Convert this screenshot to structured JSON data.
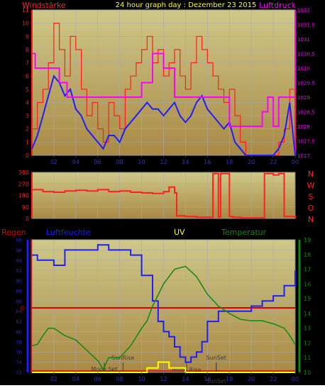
{
  "header": {
    "left_label": "Windstärke",
    "title": "24 hour graph day : Dezember 23 2015",
    "right_label": "Luftdruck"
  },
  "colors": {
    "background": "#000000",
    "plot_top": "#cfc889",
    "plot_bottom": "#a88944",
    "grid": "#a9a9a9",
    "wind_gust": "#ff1e1e",
    "wind_avg": "#1e1eff",
    "pressure": "#ff00ff",
    "direction": "#ff2020",
    "humidity": "#1e1eff",
    "temperature": "#118811",
    "rain": "#e00000",
    "uv": "#ffff00",
    "moon_marker": "#404040",
    "title_yellow": "#ffff00"
  },
  "chart_data": [
    {
      "type": "line",
      "title": "24 hour graph day : Dezember 23 2015",
      "xlabel": "",
      "x_ticks": [
        "02",
        "04",
        "06",
        "08",
        "10",
        "12",
        "14",
        "16",
        "18",
        "20",
        "22",
        "00"
      ],
      "ylabel_left": "Windstärke",
      "ylabel_right": "Luftdruck",
      "ylim_left": [
        0,
        11
      ],
      "y_ticks_left": [
        "0",
        "1",
        "2",
        "3",
        "4",
        "5",
        "6",
        "7",
        "8",
        "9",
        "10",
        "11"
      ],
      "ylim_right": [
        1027,
        1032
      ],
      "y_ticks_right": [
        "1027",
        "1027,5",
        "1028",
        "1028,5",
        "1029",
        "1029,5",
        "1030",
        "1030,5",
        "1031",
        "1031,5",
        "1032"
      ],
      "grid": true,
      "series": [
        {
          "axis": "left",
          "role": "gust",
          "x": [
            0,
            0.5,
            1,
            1.5,
            2,
            2.5,
            3,
            3.5,
            4,
            4.5,
            5,
            5.5,
            6,
            6.5,
            7,
            7.5,
            8,
            8.5,
            9,
            9.5,
            10,
            10.5,
            11,
            11.5,
            12,
            12.5,
            13,
            13.5,
            14,
            14.5,
            15,
            15.5,
            16,
            16.5,
            17,
            17.5,
            18,
            18.5,
            19,
            19.5,
            20,
            20.5,
            21,
            21.5,
            22,
            22.5,
            23,
            23.5,
            24
          ],
          "values": [
            2,
            4,
            5,
            7,
            10,
            8,
            6,
            9,
            8,
            5,
            3,
            4,
            2,
            1,
            4,
            3,
            2,
            5,
            6,
            7,
            8,
            9,
            7,
            8,
            6,
            7,
            8,
            6,
            5,
            7,
            9,
            8,
            7,
            6,
            5,
            4,
            5,
            3,
            1,
            0,
            0,
            0,
            0,
            0,
            0,
            1,
            2,
            5,
            0
          ]
        },
        {
          "axis": "left",
          "role": "average",
          "x": [
            0,
            0.5,
            1,
            1.5,
            2,
            2.5,
            3,
            3.5,
            4,
            4.5,
            5,
            5.5,
            6,
            6.5,
            7,
            7.5,
            8,
            8.5,
            9,
            9.5,
            10,
            10.5,
            11,
            11.5,
            12,
            12.5,
            13,
            13.5,
            14,
            14.5,
            15,
            15.5,
            16,
            16.5,
            17,
            17.5,
            18,
            18.5,
            19,
            19.5,
            20,
            20.5,
            21,
            21.5,
            22,
            22.5,
            23,
            23.5,
            24
          ],
          "values": [
            0.5,
            1.5,
            3,
            4.5,
            6,
            5.5,
            4.5,
            5,
            3.5,
            3,
            2,
            1.5,
            1,
            0.5,
            1.5,
            1.5,
            1,
            2,
            2.5,
            3,
            3.5,
            4,
            3.5,
            3.5,
            3,
            3.5,
            4,
            3,
            2.5,
            3,
            4,
            4.5,
            3.5,
            3,
            2.5,
            2,
            2.5,
            1,
            0.5,
            0,
            0,
            0,
            0,
            0,
            0,
            0.5,
            1.5,
            4,
            0
          ]
        },
        {
          "axis": "right",
          "role": "pressure",
          "x": [
            0,
            0.3,
            1,
            2,
            2.5,
            3,
            3.2,
            4,
            5,
            6,
            7,
            8,
            8.5,
            10,
            11,
            12,
            13,
            13.5,
            14,
            15,
            16,
            17,
            18,
            18.2,
            19,
            20,
            21,
            21.5,
            22,
            22.5,
            23,
            23.5,
            24
          ],
          "values": [
            1030.5,
            1030,
            1030,
            1030,
            1029.5,
            1029.5,
            1029,
            1029,
            1029,
            1029,
            1029,
            1029,
            1029,
            1029.5,
            1030.5,
            1030,
            1029,
            1029,
            1029,
            1029,
            1029,
            1029,
            1028,
            1028,
            1028,
            1028,
            1028.5,
            1029,
            1028,
            1029,
            1029,
            1029,
            1029
          ]
        }
      ]
    },
    {
      "type": "line",
      "title": "",
      "xlabel": "",
      "ylabel": "",
      "ylim": [
        0,
        360
      ],
      "y_ticks": [
        "0",
        "90",
        "180",
        "270",
        "360"
      ],
      "compass_labels": [
        "N",
        "W",
        "S",
        "O",
        "N"
      ],
      "grid": true,
      "series": [
        {
          "role": "wind_direction",
          "x": [
            0,
            1,
            2,
            3,
            4,
            5,
            6,
            7,
            8,
            9,
            10,
            11,
            12,
            12.5,
            13,
            13.2,
            14,
            15,
            16,
            16.5,
            16.7,
            17,
            17.2,
            17.5,
            18,
            18.3,
            19,
            20,
            21,
            21.2,
            22,
            22.5,
            23,
            24
          ],
          "values": [
            225,
            210,
            205,
            215,
            220,
            215,
            225,
            210,
            215,
            205,
            200,
            195,
            210,
            245,
            200,
            20,
            15,
            10,
            10,
            350,
            350,
            10,
            350,
            350,
            15,
            10,
            5,
            5,
            5,
            350,
            340,
            350,
            15,
            5
          ]
        }
      ]
    },
    {
      "type": "line",
      "title": "",
      "xlabel": "",
      "x_ticks": [
        "02",
        "04",
        "06",
        "08",
        "10",
        "12",
        "14",
        "16",
        "18",
        "20",
        "22",
        "00"
      ],
      "ylabel_left": "Luftfeuchte",
      "ylim_left": [
        72,
        98
      ],
      "y_ticks_left": [
        "72",
        "74",
        "76",
        "78",
        "80",
        "82",
        "84",
        "86",
        "88",
        "90",
        "92",
        "94",
        "96",
        "98"
      ],
      "ylabel_right": "Temperatur",
      "ylim_right": [
        10,
        19
      ],
      "y_ticks_right": [
        "10",
        "11",
        "12",
        "13",
        "14",
        "15",
        "16",
        "17",
        "18",
        "19"
      ],
      "extra_labels": {
        "rain": "Regen",
        "uv": "UV",
        "rain_tick": "0"
      },
      "annotations": [
        "Moon Set",
        "SunRise",
        "SunSet",
        "Moon Rise",
        "SunSet"
      ],
      "grid": true,
      "series": [
        {
          "axis": "left",
          "role": "humidity",
          "x": [
            0,
            0.5,
            1,
            2,
            3,
            4,
            5,
            6,
            7,
            8,
            9,
            10,
            11,
            11.5,
            12,
            12.5,
            13,
            13.5,
            14,
            14.5,
            15,
            15.5,
            16,
            17,
            18,
            19,
            20,
            21,
            22,
            23,
            24
          ],
          "values": [
            95,
            94,
            94,
            93,
            96,
            96,
            96,
            97,
            96,
            96,
            95,
            91,
            86,
            82,
            80,
            79,
            77,
            75,
            74,
            75,
            76,
            78,
            82,
            84,
            84,
            84,
            85,
            86,
            87,
            89,
            92
          ]
        },
        {
          "axis": "right",
          "role": "temperature",
          "x": [
            0,
            0.5,
            1,
            1.5,
            2,
            3,
            4,
            5,
            6,
            6.5,
            7,
            8,
            9,
            10,
            10.5,
            11,
            12,
            13,
            14,
            15,
            16,
            17,
            18,
            19,
            20,
            21,
            22,
            23,
            23.5,
            24
          ],
          "values": [
            11.8,
            11.9,
            12.5,
            13,
            13,
            12.5,
            12.2,
            11.5,
            10.8,
            10.2,
            11,
            11,
            11.8,
            13,
            13.5,
            14.5,
            16,
            17,
            17.2,
            16.5,
            15.3,
            14.5,
            14,
            13.6,
            13.5,
            13.5,
            13.3,
            13,
            12.5,
            11.9
          ]
        },
        {
          "axis": "right",
          "role": "uv",
          "x": [
            0,
            9.5,
            10,
            10.5,
            11,
            11.5,
            12,
            12.5,
            13,
            13.5,
            14,
            24
          ],
          "values": [
            10,
            10,
            10,
            10.3,
            10.3,
            10.7,
            10.7,
            10.3,
            10.3,
            10.3,
            10,
            10
          ]
        }
      ]
    }
  ]
}
